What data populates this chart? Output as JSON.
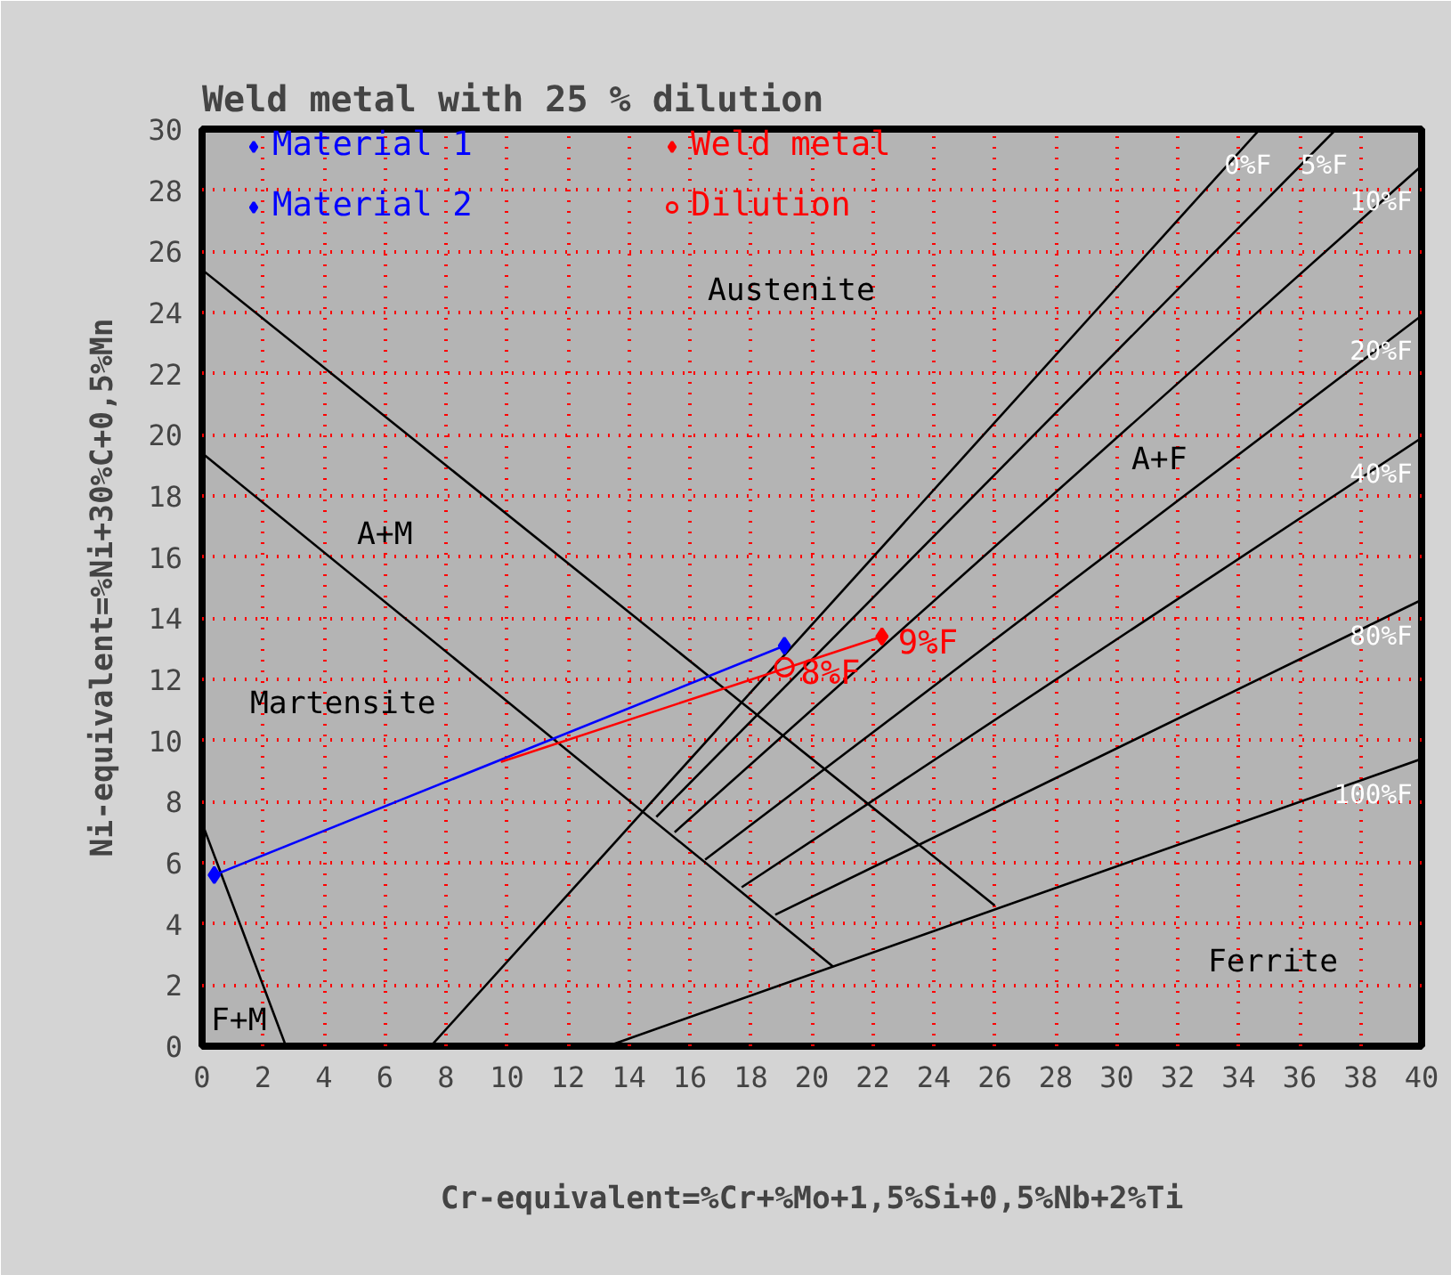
{
  "chart_data": {
    "type": "line",
    "title": "Weld metal with 25 % dilution",
    "xlabel": "Cr-equivalent=%Cr+%Mo+1,5%Si+0,5%Nb+2%Ti",
    "ylabel": "Ni-equivalent=%Ni+30%C+0,5%Mn",
    "xlim": [
      0,
      40
    ],
    "ylim": [
      0,
      30
    ],
    "xticks": [
      0,
      2,
      4,
      6,
      8,
      10,
      12,
      14,
      16,
      18,
      20,
      22,
      24,
      26,
      28,
      30,
      32,
      34,
      36,
      38,
      40
    ],
    "yticks": [
      0,
      2,
      4,
      6,
      8,
      10,
      12,
      14,
      16,
      18,
      20,
      22,
      24,
      26,
      28,
      30
    ],
    "grid": true,
    "legend": "top left",
    "series": [
      {
        "color": "#000000",
        "x": [
          0,
          2.75
        ],
        "values": [
          7.3,
          0
        ]
      },
      {
        "color": "#000000",
        "x": [
          0,
          26
        ],
        "values": [
          25.4,
          4.6
        ]
      },
      {
        "color": "#000000",
        "x": [
          0,
          20.7
        ],
        "values": [
          19.4,
          2.6
        ]
      },
      {
        "name": "0%F",
        "color": "#000000",
        "x": [
          7.5,
          34.7
        ],
        "values": [
          0,
          30
        ]
      },
      {
        "name": "5%F",
        "color": "#000000",
        "x": [
          14.9,
          37.2
        ],
        "values": [
          7.5,
          30
        ]
      },
      {
        "name": "10%F",
        "color": "#000000",
        "x": [
          15.5,
          40
        ],
        "values": [
          7.0,
          28.8
        ]
      },
      {
        "name": "20%F",
        "color": "#000000",
        "x": [
          16.5,
          40
        ],
        "values": [
          6.1,
          23.9
        ]
      },
      {
        "name": "40%F",
        "color": "#000000",
        "x": [
          17.7,
          40
        ],
        "values": [
          5.2,
          19.9
        ]
      },
      {
        "name": "80%F",
        "color": "#000000",
        "x": [
          18.8,
          40
        ],
        "values": [
          4.3,
          14.6
        ]
      },
      {
        "name": "100%F",
        "color": "#000000",
        "x": [
          13.3,
          40
        ],
        "values": [
          0,
          9.4
        ]
      },
      {
        "color": "#0000ff",
        "x": [
          0.4,
          19.1
        ],
        "values": [
          5.6,
          13.1
        ]
      },
      {
        "color": "#ff0000",
        "x": [
          9.8,
          22.3
        ],
        "values": [
          9.3,
          13.4
        ]
      },
      {
        "type": "scatter",
        "name": "Material 1",
        "color": "#0000ff",
        "marker": "diamond",
        "x": [
          0.4
        ],
        "values": [
          5.6
        ]
      },
      {
        "type": "scatter",
        "name": "Weld metal",
        "color": "#ff0000",
        "marker": "diamond",
        "x": [
          22.3
        ],
        "values": [
          13.4
        ]
      },
      {
        "type": "scatter",
        "name": "Material 2",
        "color": "#0000ff",
        "marker": "diamond",
        "x": [
          19.1
        ],
        "values": [
          13.1
        ]
      },
      {
        "type": "scatter",
        "name": "Dilution",
        "color": "#ff0000",
        "marker": "circle",
        "x": [
          19.1
        ],
        "values": [
          12.4
        ]
      }
    ],
    "annotations": [
      {
        "text": "8%F",
        "x": 19.1,
        "y": 12.4
      },
      {
        "text": "9%F",
        "x": 22.3,
        "y": 13.4
      },
      "Austenite",
      "A+M",
      "Martensite",
      "A+F",
      "Ferrite",
      "F+M"
    ]
  }
}
